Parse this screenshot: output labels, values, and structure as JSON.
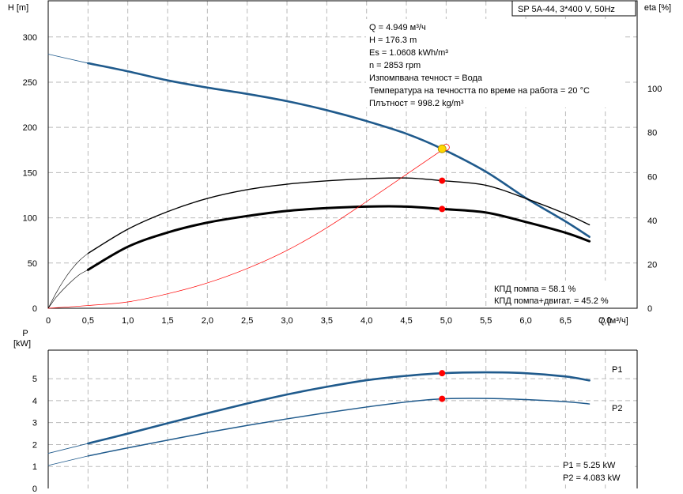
{
  "chart_data": [
    {
      "type": "line",
      "title": "SP 5A-44, 3*400 V, 50Hz",
      "xlabel": "Q [м³/ч]",
      "ylabel": "H [m]",
      "y2label": "eta [%]",
      "xlim": [
        0,
        7.4
      ],
      "ylim": [
        0,
        340
      ],
      "y2lim": [
        0,
        140
      ],
      "x_ticks": [
        "0",
        "0,5",
        "1,0",
        "1,5",
        "2,0",
        "2,5",
        "3,0",
        "3,5",
        "4,0",
        "4,5",
        "5,0",
        "5,5",
        "6,0",
        "6,5",
        "7,0"
      ],
      "y_ticks": [
        "0",
        "50",
        "100",
        "150",
        "200",
        "250",
        "300"
      ],
      "y2_ticks": [
        "0",
        "20",
        "40",
        "60",
        "80",
        "100"
      ],
      "grid": true,
      "info_lines": [
        "Q = 4.949 м³/ч",
        "H = 176.3 m",
        "Es = 1.0608 kWh/m³",
        "n = 2853 rpm",
        "Изпомпвана течност = Вода",
        "Температура на течността по време на работа = 20 °C",
        "Плътност = 998.2 kg/m³"
      ],
      "eff_lines": [
        "КПД помпа = 58.1 %",
        "КПД помпа+двигат. = 45.2 %"
      ],
      "series": [
        {
          "key": "head",
          "axis": "left",
          "color": "#1f5a8c",
          "x": [
            0.5,
            1.0,
            1.5,
            2.0,
            2.5,
            3.0,
            3.5,
            4.0,
            4.5,
            4.949,
            5.5,
            6.0,
            6.5,
            6.8
          ],
          "values": [
            271,
            262,
            252,
            244,
            237,
            229,
            219,
            207,
            193,
            176.3,
            151,
            122,
            96,
            79
          ]
        },
        {
          "key": "head_ext",
          "axis": "left",
          "color": "#1f5a8c",
          "x": [
            0,
            0.5
          ],
          "values": [
            281,
            271
          ]
        },
        {
          "key": "eta_pump",
          "axis": "right",
          "color": "#000000",
          "x": [
            0.5,
            1.0,
            1.5,
            2.0,
            2.5,
            3.0,
            3.5,
            4.0,
            4.5,
            4.949,
            5.5,
            6.0,
            6.5,
            6.8
          ],
          "values": [
            25,
            36,
            44,
            50,
            54,
            56.5,
            58,
            59,
            59.3,
            58.1,
            56,
            50,
            43,
            38
          ]
        },
        {
          "key": "eta_pump_ext",
          "axis": "right",
          "color": "#000000",
          "x": [
            0,
            0.1,
            0.2,
            0.3,
            0.4,
            0.5
          ],
          "values": [
            0,
            7,
            13,
            18,
            22,
            25
          ]
        },
        {
          "key": "eta_total",
          "axis": "right",
          "color": "#000000",
          "x": [
            0.5,
            1.0,
            1.5,
            2.0,
            2.5,
            3.0,
            3.5,
            4.0,
            4.5,
            4.949,
            5.5,
            6.0,
            6.5,
            6.8
          ],
          "values": [
            17.5,
            28,
            34.5,
            39,
            42,
            44.3,
            45.6,
            46.3,
            46.3,
            45.2,
            43.6,
            39.3,
            34.4,
            30.5
          ]
        },
        {
          "key": "eta_total_ext",
          "axis": "right",
          "color": "#000000",
          "x": [
            0,
            0.1,
            0.2,
            0.3,
            0.4,
            0.5
          ],
          "values": [
            0,
            5,
            9,
            12.5,
            15.5,
            17.5
          ]
        },
        {
          "key": "npsh",
          "axis": "left",
          "color": "#ff0000",
          "x": [
            0,
            0.5,
            1.0,
            1.5,
            2.0,
            2.5,
            3.0,
            3.5,
            4.0,
            4.5,
            5.0
          ],
          "values": [
            0,
            3,
            7,
            16,
            28,
            44,
            64,
            89,
            118,
            148,
            178
          ]
        }
      ],
      "points": [
        {
          "key": "duty",
          "axis": "left",
          "x": 4.949,
          "y": 176.3,
          "color": "#ffd700"
        },
        {
          "key": "eta_pump_pt",
          "axis": "right",
          "x": 4.949,
          "y": 58.1,
          "color": "#ff0000"
        },
        {
          "key": "eta_total_pt",
          "axis": "right",
          "x": 4.949,
          "y": 45.2,
          "color": "#ff0000"
        }
      ]
    },
    {
      "type": "line",
      "xlabel": "",
      "ylabel": "P [kW]",
      "xlim": [
        0,
        7.4
      ],
      "ylim": [
        0,
        6.3
      ],
      "y_ticks": [
        "0",
        "1",
        "2",
        "3",
        "4",
        "5"
      ],
      "grid": true,
      "power_lines": [
        "P1 = 5.25 kW",
        "P2 = 4.083 kW"
      ],
      "series": [
        {
          "key": "P1",
          "name": "P1",
          "color": "#1f5a8c",
          "x": [
            0.5,
            1.0,
            1.5,
            2.0,
            2.5,
            3.0,
            3.5,
            4.0,
            4.5,
            4.949,
            5.5,
            6.0,
            6.5,
            6.8
          ],
          "values": [
            2.05,
            2.5,
            2.97,
            3.43,
            3.87,
            4.28,
            4.63,
            4.93,
            5.13,
            5.25,
            5.29,
            5.25,
            5.1,
            4.92
          ]
        },
        {
          "key": "P1_ext",
          "color": "#1f5a8c",
          "x": [
            0,
            0.5
          ],
          "values": [
            1.6,
            2.05
          ]
        },
        {
          "key": "P2",
          "name": "P2",
          "color": "#1f5a8c",
          "x": [
            0.5,
            1.0,
            1.5,
            2.0,
            2.5,
            3.0,
            3.5,
            4.0,
            4.5,
            4.949,
            5.5,
            6.0,
            6.5,
            6.8
          ],
          "values": [
            1.48,
            1.85,
            2.2,
            2.55,
            2.87,
            3.17,
            3.45,
            3.71,
            3.94,
            4.083,
            4.1,
            4.05,
            3.95,
            3.85
          ]
        },
        {
          "key": "P2_ext",
          "color": "#1f5a8c",
          "x": [
            0,
            0.5
          ],
          "values": [
            1.05,
            1.48
          ]
        }
      ],
      "points": [
        {
          "key": "P1_pt",
          "x": 4.949,
          "y": 5.25,
          "color": "#ff0000"
        },
        {
          "key": "P2_pt",
          "x": 4.949,
          "y": 4.083,
          "color": "#ff0000"
        }
      ]
    }
  ]
}
